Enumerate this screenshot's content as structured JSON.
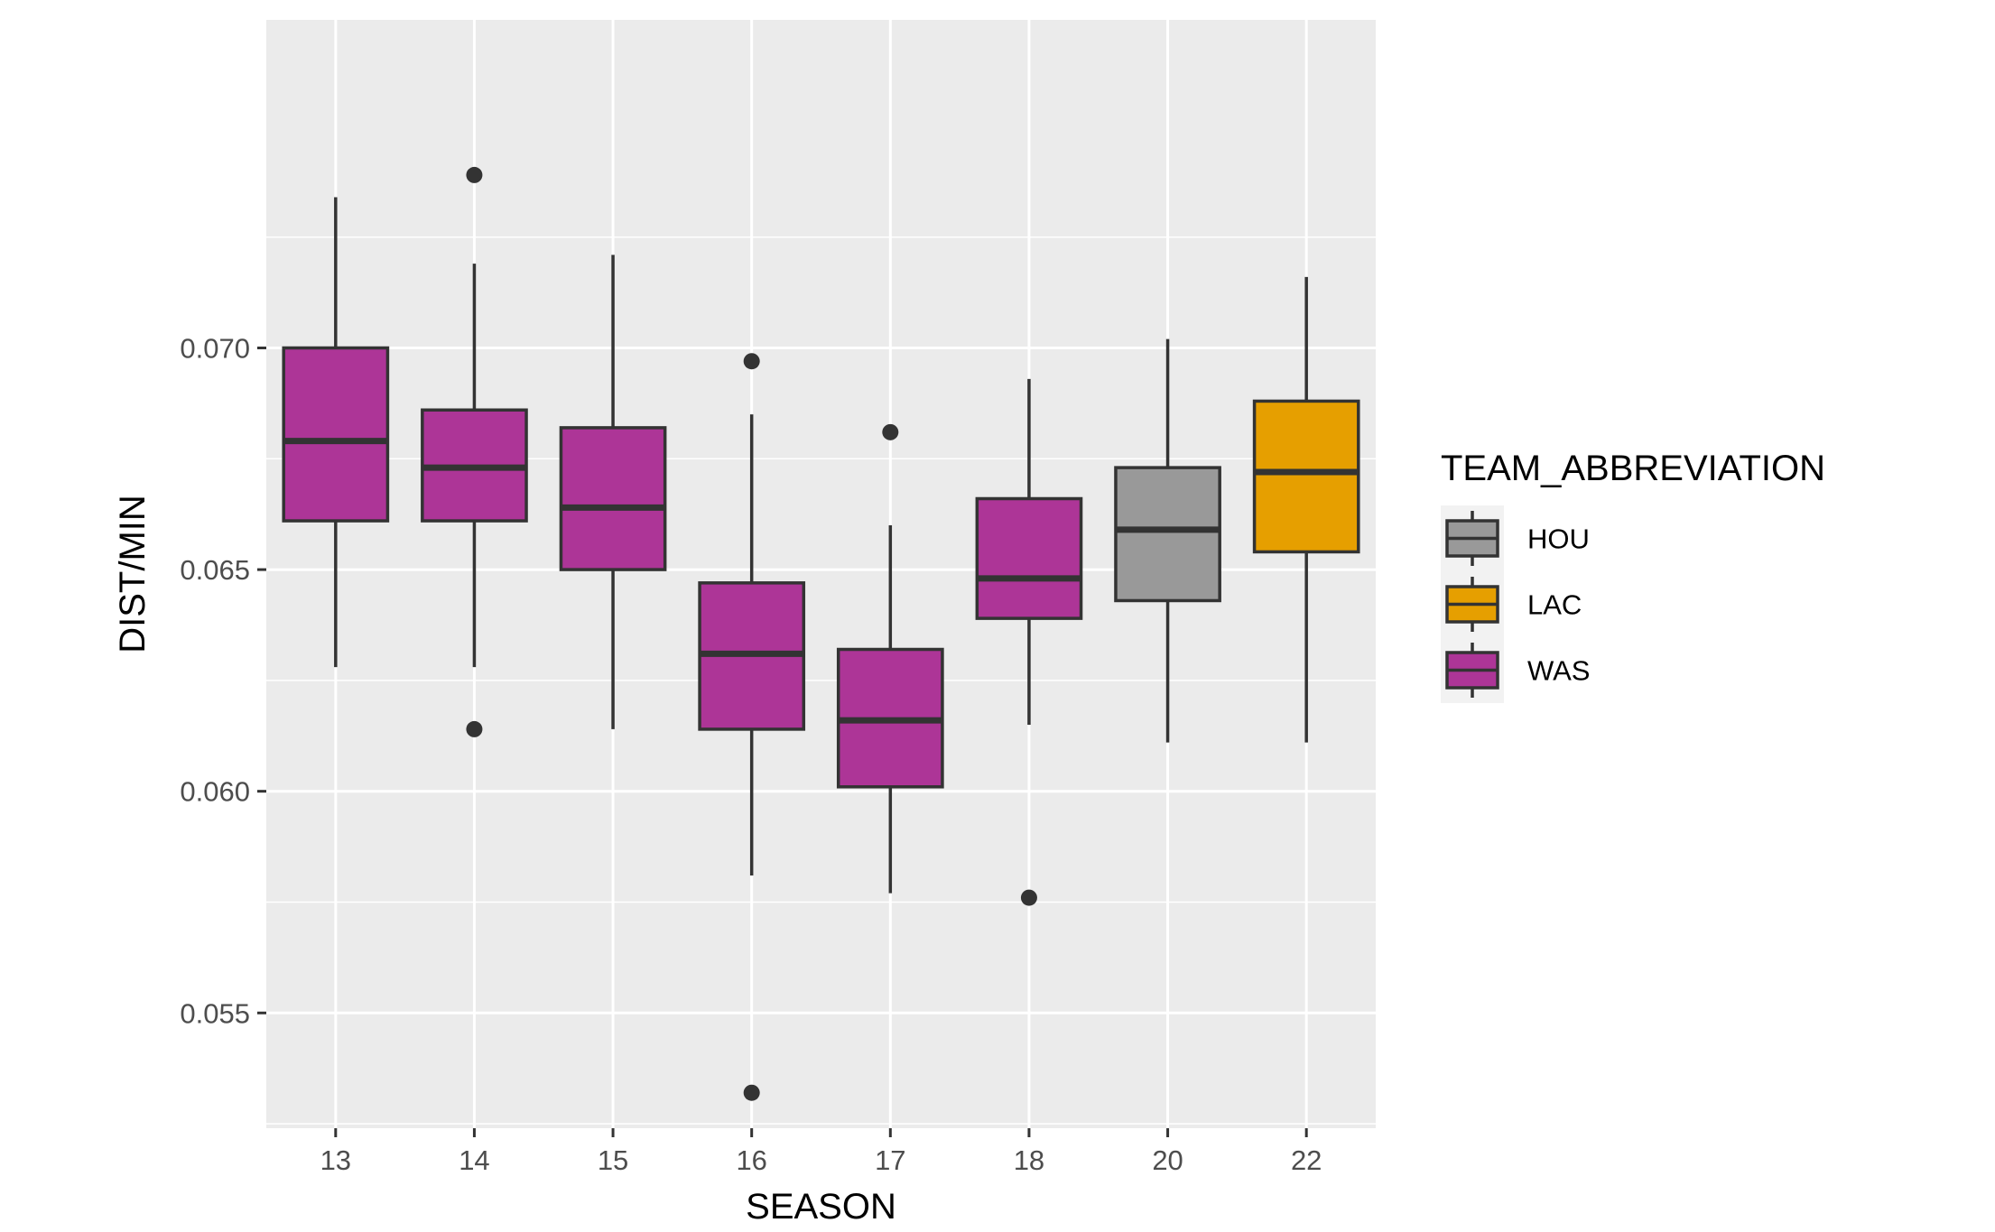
{
  "chart_data": {
    "type": "boxplot",
    "xlabel": "SEASON",
    "ylabel": "DIST/MIN",
    "ylim": [
      0.0524,
      0.0774
    ],
    "yticks": [
      0.055,
      0.06,
      0.065,
      0.07
    ],
    "ytick_labels": [
      "0.055",
      "0.060",
      "0.065",
      "0.070"
    ],
    "categories": [
      "13",
      "14",
      "15",
      "16",
      "17",
      "18",
      "20",
      "22"
    ],
    "grid": true,
    "legend": {
      "title": "TEAM_ABBREVIATION",
      "position": "right",
      "entries": [
        {
          "label": "HOU",
          "color": "#999999"
        },
        {
          "label": "LAC",
          "color": "#E69F00"
        },
        {
          "label": "WAS",
          "color": "#AD3597"
        }
      ]
    },
    "boxes": [
      {
        "season": "13",
        "team": "WAS",
        "whisker_low": 0.0628,
        "q1": 0.0661,
        "median": 0.0679,
        "q3": 0.07,
        "whisker_high": 0.0734,
        "outliers": []
      },
      {
        "season": "14",
        "team": "WAS",
        "whisker_low": 0.0628,
        "q1": 0.0661,
        "median": 0.0673,
        "q3": 0.0686,
        "whisker_high": 0.0719,
        "outliers": [
          0.0614,
          0.0739
        ]
      },
      {
        "season": "15",
        "team": "WAS",
        "whisker_low": 0.0614,
        "q1": 0.065,
        "median": 0.0664,
        "q3": 0.0682,
        "whisker_high": 0.0721,
        "outliers": []
      },
      {
        "season": "16",
        "team": "WAS",
        "whisker_low": 0.0581,
        "q1": 0.0614,
        "median": 0.0631,
        "q3": 0.0647,
        "whisker_high": 0.0685,
        "outliers": [
          0.0697,
          0.0532
        ]
      },
      {
        "season": "17",
        "team": "WAS",
        "whisker_low": 0.0577,
        "q1": 0.0601,
        "median": 0.0616,
        "q3": 0.0632,
        "whisker_high": 0.066,
        "outliers": [
          0.0681
        ]
      },
      {
        "season": "18",
        "team": "WAS",
        "whisker_low": 0.0615,
        "q1": 0.0639,
        "median": 0.0648,
        "q3": 0.0666,
        "whisker_high": 0.0693,
        "outliers": [
          0.0576
        ]
      },
      {
        "season": "20",
        "team": "HOU",
        "whisker_low": 0.0611,
        "q1": 0.0643,
        "median": 0.0659,
        "q3": 0.0673,
        "whisker_high": 0.0702,
        "outliers": []
      },
      {
        "season": "22",
        "team": "LAC",
        "whisker_low": 0.0611,
        "q1": 0.0654,
        "median": 0.0672,
        "q3": 0.0688,
        "whisker_high": 0.0716,
        "outliers": []
      }
    ]
  }
}
